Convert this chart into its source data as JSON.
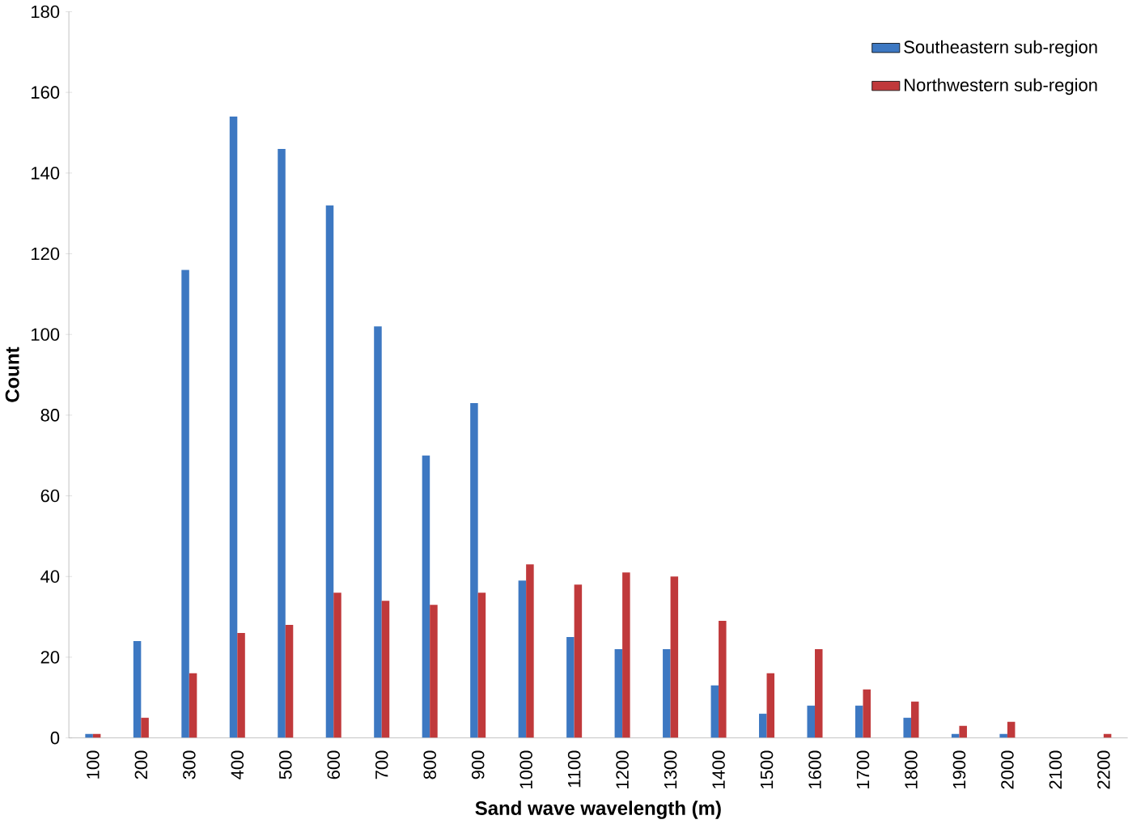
{
  "chart_data": {
    "type": "bar",
    "xlabel": "Sand wave wavelength (m)",
    "ylabel": "Count",
    "categories": [
      "100",
      "200",
      "300",
      "400",
      "500",
      "600",
      "700",
      "800",
      "900",
      "1000",
      "1100",
      "1200",
      "1300",
      "1400",
      "1500",
      "1600",
      "1700",
      "1800",
      "1900",
      "2000",
      "2100",
      "2200"
    ],
    "series": [
      {
        "name": "Southeastern sub-region",
        "color": "#3d78c2",
        "values": [
          1,
          24,
          116,
          154,
          146,
          132,
          102,
          70,
          83,
          39,
          25,
          22,
          22,
          13,
          6,
          8,
          8,
          5,
          1,
          1,
          0,
          0
        ]
      },
      {
        "name": "Northwestern sub-region",
        "color": "#c0393b",
        "values": [
          1,
          5,
          16,
          26,
          28,
          36,
          34,
          33,
          36,
          43,
          38,
          41,
          40,
          29,
          16,
          22,
          12,
          9,
          3,
          4,
          0,
          1
        ]
      }
    ],
    "ylim": [
      0,
      180
    ],
    "yticks": [
      0,
      20,
      40,
      60,
      80,
      100,
      120,
      140,
      160,
      180
    ],
    "grid": false,
    "legend": "top right"
  }
}
